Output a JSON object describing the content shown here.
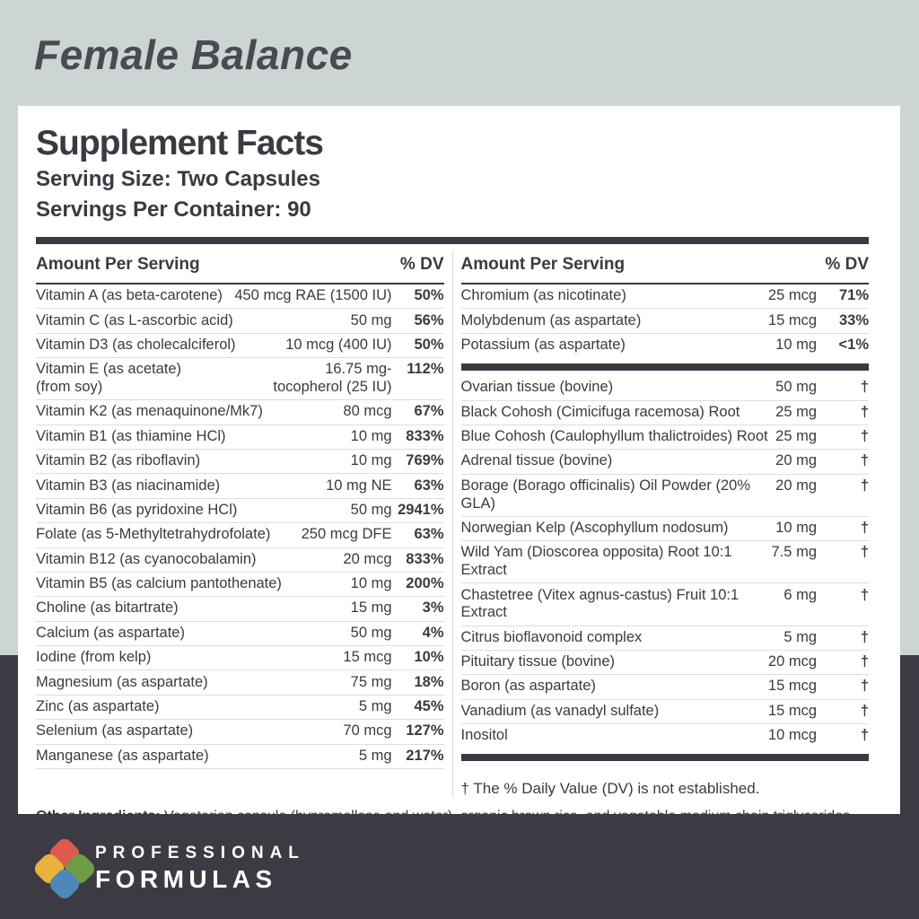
{
  "page": {
    "product_title": "Female Balance",
    "colors": {
      "background_light": "#cdd4d4",
      "background_dark": "#3c3b44",
      "text": "#3b3a43",
      "panel": "#ffffff",
      "separator": "#dcdede"
    }
  },
  "panel": {
    "title": "Supplement Facts",
    "serving_size": "Serving Size: Two Capsules",
    "servings_per_container": "Servings Per Container: 90",
    "column_header": {
      "amount": "Amount Per Serving",
      "dv": "% DV"
    },
    "left_rows": [
      {
        "n": "Vitamin A (as beta-carotene)",
        "a": "450 mcg RAE (1500 IU)",
        "d": "50%"
      },
      {
        "n": "Vitamin C (as L-ascorbic acid)",
        "a": "50 mg",
        "d": "56%"
      },
      {
        "n": "Vitamin D3 (as cholecalciferol)",
        "a": "10 mcg (400 IU)",
        "d": "50%"
      },
      {
        "n": "Vitamin E (as acetate)\n (from soy)",
        "a": "16.75 mg-\ntocopherol (25 IU)",
        "d": "112%"
      },
      {
        "n": "Vitamin K2 (as menaquinone/Mk7)",
        "a": "80 mcg",
        "d": "67%"
      },
      {
        "n": "Vitamin B1 (as thiamine HCl)",
        "a": "10 mg",
        "d": "833%"
      },
      {
        "n": "Vitamin B2 (as riboflavin)",
        "a": "10 mg",
        "d": "769%"
      },
      {
        "n": "Vitamin B3 (as niacinamide)",
        "a": "10 mg NE",
        "d": "63%"
      },
      {
        "n": "Vitamin B6 (as pyridoxine HCl)",
        "a": "50 mg",
        "d": "2941%"
      },
      {
        "n": "Folate (as 5-Methyltetrahydrofolate)",
        "a": "250 mcg DFE",
        "d": "63%"
      },
      {
        "n": "Vitamin B12 (as cyanocobalamin)",
        "a": "20 mcg",
        "d": "833%"
      },
      {
        "n": "Vitamin B5 (as calcium pantothenate)",
        "a": "10 mg",
        "d": "200%"
      },
      {
        "n": "Choline (as bitartrate)",
        "a": "15 mg",
        "d": "3%"
      },
      {
        "n": "Calcium (as aspartate)",
        "a": "50 mg",
        "d": "4%"
      },
      {
        "n": "Iodine (from kelp)",
        "a": "15 mcg",
        "d": "10%"
      },
      {
        "n": "Magnesium (as aspartate)",
        "a": "75 mg",
        "d": "18%"
      },
      {
        "n": "Zinc (as aspartate)",
        "a": "5 mg",
        "d": "45%"
      },
      {
        "n": "Selenium (as aspartate)",
        "a": "70 mcg",
        "d": "127%"
      },
      {
        "n": "Manganese (as aspartate)",
        "a": "5 mg",
        "d": "217%"
      }
    ],
    "right_groups": [
      [
        {
          "n": "Chromium (as nicotinate)",
          "a": "25 mcg",
          "d": "71%"
        },
        {
          "n": "Molybdenum (as aspartate)",
          "a": "15 mcg",
          "d": "33%"
        },
        {
          "n": "Potassium (as aspartate)",
          "a": "10 mg",
          "d": "<1%"
        }
      ],
      [
        {
          "n": "Ovarian tissue (bovine)",
          "a": "50 mg",
          "d": "†"
        },
        {
          "n": "Black Cohosh (Cimicifuga racemosa) Root",
          "a": "25 mg",
          "d": "†"
        },
        {
          "n": "Blue Cohosh (Caulophyllum thalictroides) Root",
          "a": "25 mg",
          "d": "†"
        },
        {
          "n": "Adrenal tissue (bovine)",
          "a": "20 mg",
          "d": "†"
        },
        {
          "n": "Borage (Borago officinalis) Oil Powder (20% GLA)",
          "a": "20 mg",
          "d": "†"
        },
        {
          "n": "Norwegian Kelp (Ascophyllum nodosum)",
          "a": "10 mg",
          "d": "†"
        },
        {
          "n": "Wild Yam (Dioscorea opposita) Root 10:1 Extract",
          "a": "7.5 mg",
          "d": "†"
        },
        {
          "n": "Chastetree (Vitex agnus-castus) Fruit 10:1 Extract",
          "a": "6 mg",
          "d": "†"
        },
        {
          "n": "Citrus bioflavonoid complex",
          "a": "5 mg",
          "d": "†"
        },
        {
          "n": "Pituitary tissue (bovine)",
          "a": "20 mcg",
          "d": "†"
        },
        {
          "n": "Boron (as aspartate)",
          "a": "15 mcg",
          "d": "†"
        },
        {
          "n": "Vanadium (as vanadyl sulfate)",
          "a": "15 mcg",
          "d": "†"
        },
        {
          "n": "Inositol",
          "a": "10 mcg",
          "d": "†"
        }
      ]
    ],
    "footnote": "† The % Daily Value (DV) is not established.",
    "other_ingredients_label": "Other Ingredients:",
    "other_ingredients_text": " Vegetarian capsule (hypromellose and water), organic brown rice, and vegetable medium chain triglycerides."
  },
  "footer": {
    "brand_line1": "PROFESSIONAL",
    "brand_line2": "FORMULAS",
    "logo_colors": {
      "top": "#dd5a4c",
      "left": "#e9b23d",
      "right": "#6f9d43",
      "bottom": "#4f88b8"
    }
  }
}
